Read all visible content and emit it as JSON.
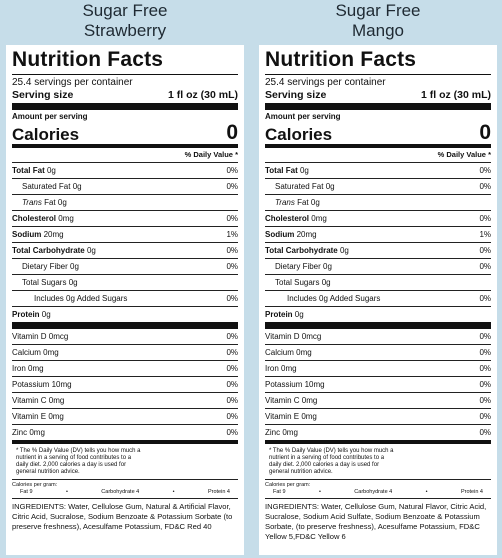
{
  "products": [
    {
      "flavor_line1": "Sugar Free",
      "flavor_line2": "Strawberry",
      "title": "Nutrition Facts",
      "servings_per_container": "25.4 servings per container",
      "serving_size_label": "Serving size",
      "serving_size_value": "1 fl oz (30 mL)",
      "amount_per_serving": "Amount per serving",
      "calories_label": "Calories",
      "calories_value": "0",
      "daily_value_header": "% Daily Value *",
      "total_fat": {
        "label": "Total Fat",
        "amount": "0g",
        "dv": "0%"
      },
      "saturated_fat": {
        "label": "Saturated Fat",
        "amount": "0g",
        "dv": "0%"
      },
      "trans_fat": {
        "label": "Trans",
        "rest": "Fat 0g"
      },
      "cholesterol": {
        "label": "Cholesterol",
        "amount": "0mg",
        "dv": "0%"
      },
      "sodium": {
        "label": "Sodium",
        "amount": "20mg",
        "dv": "1%"
      },
      "total_carb": {
        "label": "Total Carbohydrate",
        "amount": "0g",
        "dv": "0%"
      },
      "dietary_fiber": {
        "label": "Dietary Fiber",
        "amount": "0g",
        "dv": "0%"
      },
      "total_sugars": {
        "text": "Total Sugars 0g"
      },
      "added_sugars": {
        "text": "Includes 0g Added Sugars",
        "dv": "0%"
      },
      "protein": {
        "label": "Protein",
        "amount": "0g"
      },
      "vitamin_d": {
        "text": "Vitamin D 0mcg",
        "dv": "0%"
      },
      "calcium": {
        "text": "Calcium 0mg",
        "dv": "0%"
      },
      "iron": {
        "text": "Iron 0mg",
        "dv": "0%"
      },
      "potassium": {
        "text": "Potassium 10mg",
        "dv": "0%"
      },
      "vitamin_c": {
        "text": "Vitamin C 0mg",
        "dv": "0%"
      },
      "vitamin_e": {
        "text": "Vitamin E 0mg",
        "dv": "0%"
      },
      "zinc": {
        "text": "Zinc 0mg",
        "dv": "0%"
      },
      "footnote_1": "* The % Daily Value (DV) tells you how much a",
      "footnote_2": "nutrient in a serving of food contributes to a",
      "footnote_3": "daily diet. 2,000 calories a day is used for",
      "footnote_4": "general nutrition advice.",
      "cal_per_gram": "Calories per gram:",
      "fat_pg": "Fat 9",
      "carb_pg": "Carbohydrate 4",
      "protein_pg": "Protein 4",
      "ingredients": "INGREDIENTS: Water, Cellulose Gum, Natural & Artificial Flavor, Citric Acid, Sucralose, Sodium Benzoate & Potassium Sorbate (to preserve freshness), Acesulfame Potassium, FD&C Red 40"
    },
    {
      "flavor_line1": "Sugar Free",
      "flavor_line2": "Mango",
      "title": "Nutrition Facts",
      "servings_per_container": "25.4 servings per container",
      "serving_size_label": "Serving size",
      "serving_size_value": "1 fl oz (30 mL)",
      "amount_per_serving": "Amount per serving",
      "calories_label": "Calories",
      "calories_value": "0",
      "daily_value_header": "% Daily Value *",
      "total_fat": {
        "label": "Total Fat",
        "amount": "0g",
        "dv": "0%"
      },
      "saturated_fat": {
        "label": "Saturated Fat",
        "amount": "0g",
        "dv": "0%"
      },
      "trans_fat": {
        "label": "Trans",
        "rest": "Fat 0g"
      },
      "cholesterol": {
        "label": "Cholesterol",
        "amount": "0mg",
        "dv": "0%"
      },
      "sodium": {
        "label": "Sodium",
        "amount": "20mg",
        "dv": "1%"
      },
      "total_carb": {
        "label": "Total Carbohydrate",
        "amount": "0g",
        "dv": "0%"
      },
      "dietary_fiber": {
        "label": "Dietary Fiber",
        "amount": "0g",
        "dv": "0%"
      },
      "total_sugars": {
        "text": "Total Sugars 0g"
      },
      "added_sugars": {
        "text": "Includes 0g Added Sugars",
        "dv": "0%"
      },
      "protein": {
        "label": "Protein",
        "amount": "0g"
      },
      "vitamin_d": {
        "text": "Vitamin D 0mcg",
        "dv": "0%"
      },
      "calcium": {
        "text": "Calcium 0mg",
        "dv": "0%"
      },
      "iron": {
        "text": "Iron 0mg",
        "dv": "0%"
      },
      "potassium": {
        "text": "Potassium 10mg",
        "dv": "0%"
      },
      "vitamin_c": {
        "text": "Vitamin C 0mg",
        "dv": "0%"
      },
      "vitamin_e": {
        "text": "Vitamin E 0mg",
        "dv": "0%"
      },
      "zinc": {
        "text": "Zinc 0mg",
        "dv": "0%"
      },
      "footnote_1": "* The % Daily Value (DV) tells you how much a",
      "footnote_2": "nutrient in a serving of food contributes to a",
      "footnote_3": "daily diet. 2,000 calories a day is used for",
      "footnote_4": "general nutrition advice.",
      "cal_per_gram": "Calories per gram:",
      "fat_pg": "Fat 9",
      "carb_pg": "Carbohydrate 4",
      "protein_pg": "Protein 4",
      "ingredients": "INGREDIENTS: Water, Cellulose Gum, Natural Flavor, Citric Acid, Sucralose, Sodium Acid Sulfate, Sodium Benzoate & Potassium Sorbate, (to preserve freshness), Acesulfame Potassium, FD&C Yellow 5,FD&C Yellow 6"
    }
  ]
}
